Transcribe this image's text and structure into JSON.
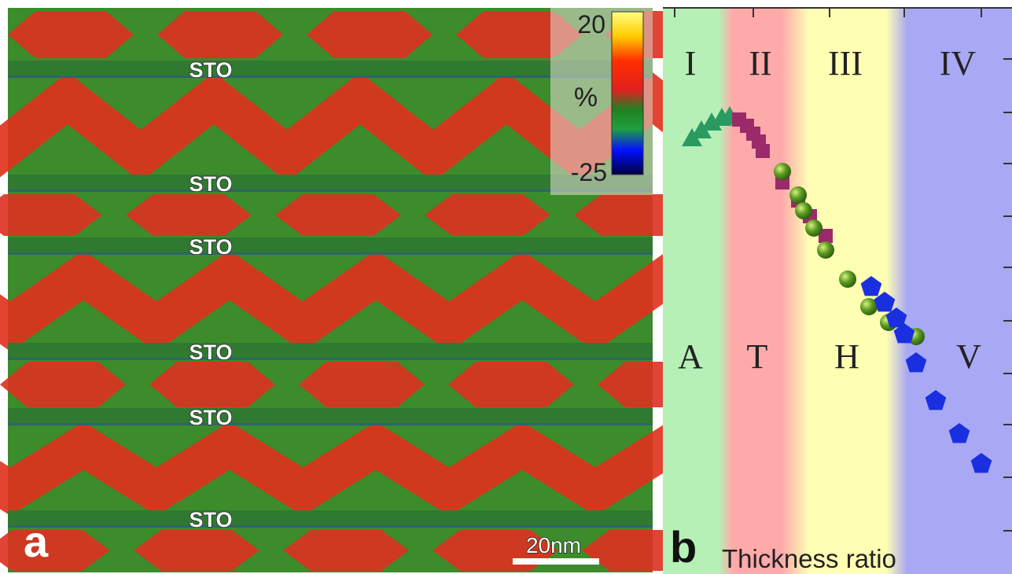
{
  "panel_a": {
    "label": "a",
    "colorbar": {
      "max": 20,
      "unit": "%",
      "min": -25
    },
    "layer_labels": [
      "STO",
      "STO",
      "STO",
      "STO",
      "STO",
      "STO"
    ],
    "scale_bar": "20nm"
  },
  "panel_b": {
    "label": "b",
    "x_axis_label": "Thickness ratio",
    "regions": [
      "I",
      "II",
      "III",
      "IV"
    ],
    "phases": [
      "A",
      "T",
      "H",
      "V"
    ]
  }
}
